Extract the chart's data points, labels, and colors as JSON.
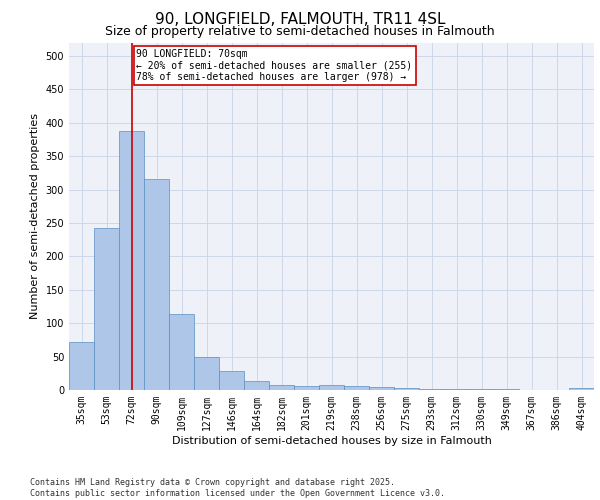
{
  "title1": "90, LONGFIELD, FALMOUTH, TR11 4SL",
  "title2": "Size of property relative to semi-detached houses in Falmouth",
  "xlabel": "Distribution of semi-detached houses by size in Falmouth",
  "ylabel": "Number of semi-detached properties",
  "categories": [
    "35sqm",
    "53sqm",
    "72sqm",
    "90sqm",
    "109sqm",
    "127sqm",
    "146sqm",
    "164sqm",
    "182sqm",
    "201sqm",
    "219sqm",
    "238sqm",
    "256sqm",
    "275sqm",
    "293sqm",
    "312sqm",
    "330sqm",
    "349sqm",
    "367sqm",
    "386sqm",
    "404sqm"
  ],
  "values": [
    72,
    243,
    387,
    315,
    113,
    50,
    29,
    14,
    7,
    6,
    8,
    6,
    5,
    3,
    1,
    2,
    1,
    1,
    0,
    0,
    3
  ],
  "bar_color": "#aec6e8",
  "bar_edge_color": "#5a8fc2",
  "vline_x_index": 2,
  "vline_color": "#cc0000",
  "annotation_text": "90 LONGFIELD: 70sqm\n← 20% of semi-detached houses are smaller (255)\n78% of semi-detached houses are larger (978) →",
  "annotation_box_color": "#ffffff",
  "annotation_box_edge_color": "#cc0000",
  "ylim": [
    0,
    520
  ],
  "yticks": [
    0,
    50,
    100,
    150,
    200,
    250,
    300,
    350,
    400,
    450,
    500
  ],
  "footer_text": "Contains HM Land Registry data © Crown copyright and database right 2025.\nContains public sector information licensed under the Open Government Licence v3.0.",
  "grid_color": "#c8d4e8",
  "background_color": "#eef2f8",
  "title1_fontsize": 11,
  "title2_fontsize": 9,
  "xlabel_fontsize": 8,
  "ylabel_fontsize": 8,
  "tick_fontsize": 7,
  "annotation_fontsize": 7,
  "footer_fontsize": 6
}
